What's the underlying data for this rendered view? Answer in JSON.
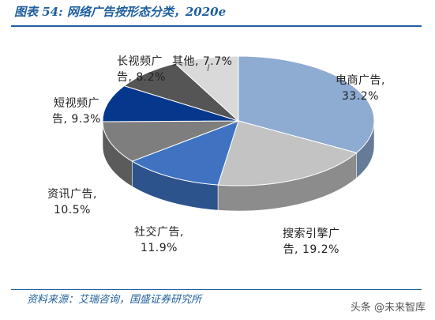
{
  "title": "图表 54:  网络广告按形态分类，2020e",
  "source": "资料来源：艾瑞咨询，国盛证券研究所",
  "watermark": "头条 @未来智库",
  "chart_data": {
    "type": "pie",
    "three_d": true,
    "series": [
      {
        "name": "电商广告",
        "value": 33.2,
        "label_text": "33.2%",
        "color": "#8eabd2"
      },
      {
        "name": "搜索引擎广告",
        "value": 19.2,
        "label_text": "19.2%",
        "color": "#c3c3c3"
      },
      {
        "name": "社交广告",
        "value": 11.9,
        "label_text": "11.9%",
        "color": "#3f73c2"
      },
      {
        "name": "资讯广告",
        "value": 10.5,
        "label_text": "10.5%",
        "color": "#7e7e7e"
      },
      {
        "name": "短视频广告",
        "value": 9.3,
        "label_text": "9.3%",
        "color": "#05388c"
      },
      {
        "name": "长视频广告",
        "value": 8.2,
        "label_text": "8.2%",
        "color": "#555555"
      },
      {
        "name": "其他",
        "value": 7.7,
        "label_text": "7.7%",
        "color": "#d9d9d9"
      }
    ],
    "labels": [
      {
        "line1": "电商广告,",
        "line2": "33.2%"
      },
      {
        "line1": "搜索引擎广",
        "line2": "告, 19.2%"
      },
      {
        "line1": "社交广告,",
        "line2": "11.9%"
      },
      {
        "line1": "资讯广告,",
        "line2": "10.5%"
      },
      {
        "line1": "短视频广",
        "line2": "告, 9.3%"
      },
      {
        "line1": "长视频广",
        "line2": "告, 8.2%"
      },
      {
        "line1": "其他, 7.7%",
        "line2": ""
      }
    ]
  }
}
